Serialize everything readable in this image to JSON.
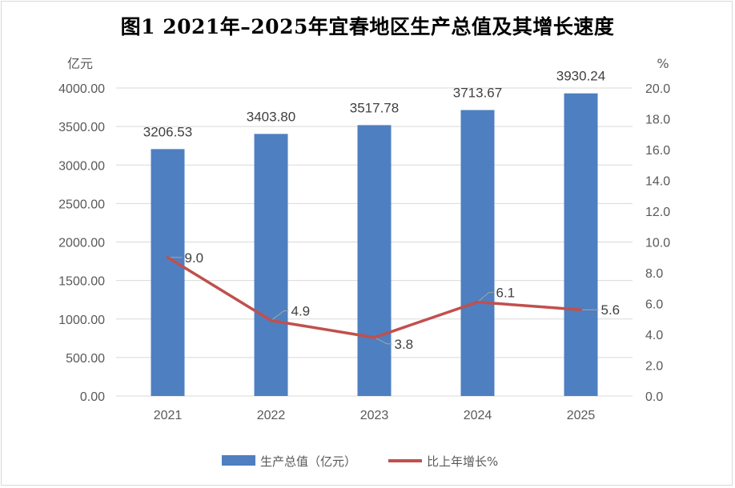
{
  "title": "图1  2021年–2025年宜春地区生产总值及其增长速度",
  "chart_data": {
    "type": "bar",
    "categories": [
      "2021",
      "2022",
      "2023",
      "2024",
      "2025"
    ],
    "series": [
      {
        "name": "生产总值（亿元）",
        "type": "bar",
        "axis": "left",
        "color": "#4e7fc0",
        "values": [
          3206.53,
          3403.8,
          3517.78,
          3713.67,
          3930.24
        ],
        "labels": [
          "3206.53",
          "3403.80",
          "3517.78",
          "3713.67",
          "3930.24"
        ]
      },
      {
        "name": "比上年增长%",
        "type": "line",
        "axis": "right",
        "color": "#c0504d",
        "values": [
          9.0,
          4.9,
          3.8,
          6.1,
          5.6
        ],
        "labels": [
          "9.0",
          "4.9",
          "3.8",
          "6.1",
          "5.6"
        ]
      }
    ],
    "y_left": {
      "unit": "亿元",
      "range": [
        0,
        4000
      ],
      "ticks": [
        "0.00",
        "500.00",
        "1000.00",
        "1500.00",
        "2000.00",
        "2500.00",
        "3000.00",
        "3500.00",
        "4000.00"
      ]
    },
    "y_right": {
      "unit": "%",
      "range": [
        0,
        20
      ],
      "ticks": [
        "0.0",
        "2.0",
        "4.0",
        "6.0",
        "8.0",
        "10.0",
        "12.0",
        "14.0",
        "16.0",
        "18.0",
        "20.0"
      ]
    },
    "grid": true,
    "legend_position": "bottom"
  }
}
